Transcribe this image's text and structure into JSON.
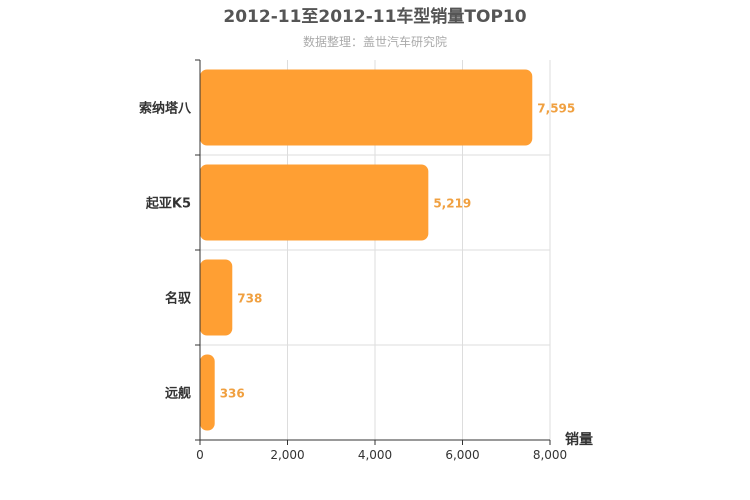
{
  "chart_data": {
    "type": "bar",
    "orientation": "horizontal",
    "title": "2012-11至2012-11车型销量TOP10",
    "subtitle": "数据整理：盖世汽车研究院",
    "xlabel": "销量",
    "ylabel": "",
    "categories": [
      "索纳塔八",
      "起亚K5",
      "名驭",
      "远舰"
    ],
    "values": [
      7595,
      5219,
      738,
      336
    ],
    "value_labels": [
      "7,595",
      "5,219",
      "738",
      "336"
    ],
    "xlim": [
      0,
      8000
    ],
    "x_ticks": [
      0,
      2000,
      4000,
      6000,
      8000
    ],
    "x_tick_labels": [
      "0",
      "2,000",
      "4,000",
      "6,000",
      "8,000"
    ],
    "grid": true,
    "legend": "none",
    "colors": {
      "bar": "#ff9f33",
      "data_label": "#f0a040",
      "grid": "#dddddd",
      "axis": "#333333"
    }
  }
}
